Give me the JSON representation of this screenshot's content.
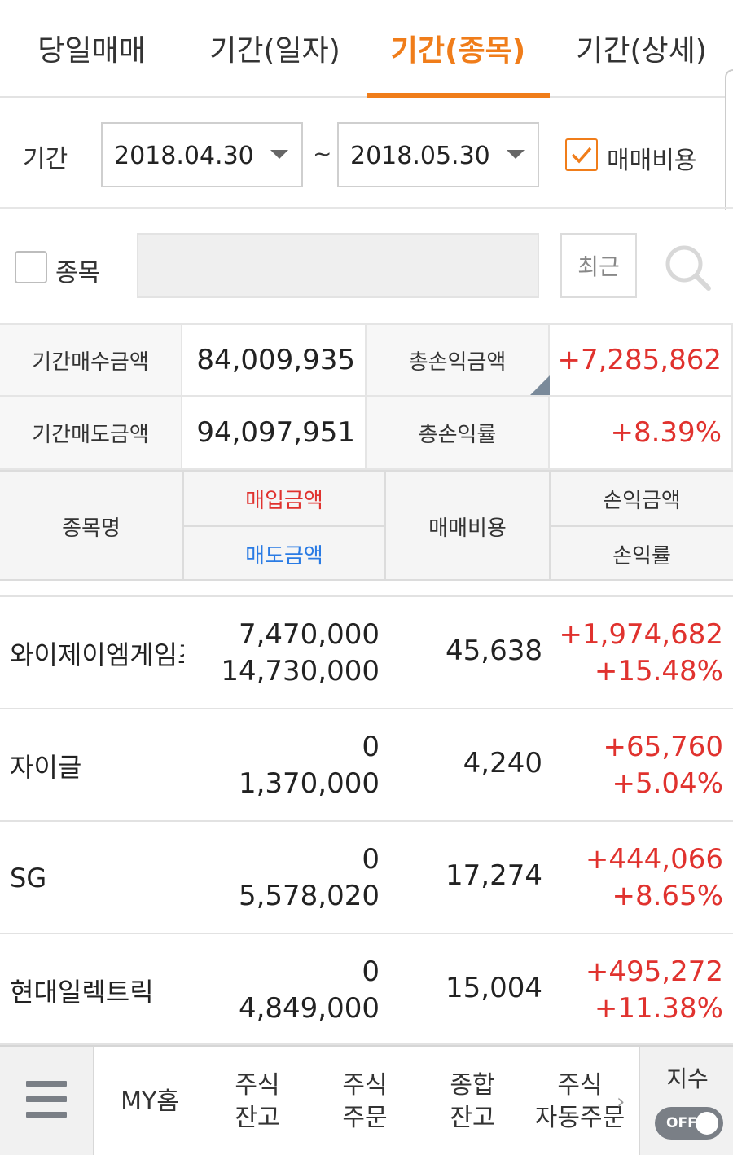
{
  "tabs": [
    {
      "label": "당일매매",
      "active": false
    },
    {
      "label": "기간(일자)",
      "active": false
    },
    {
      "label": "기간(종목)",
      "active": true
    },
    {
      "label": "기간(상세)",
      "active": false
    }
  ],
  "period": {
    "label": "기간",
    "start_date": "2018.04.30",
    "separator": "~",
    "end_date": "2018.05.30",
    "fee_checkbox_label": "매매비용",
    "fee_checked": true
  },
  "stock_filter": {
    "label": "종목",
    "checked": false,
    "input_value": "",
    "recent_button": "최근"
  },
  "summary": {
    "buy_label": "기간매수금액",
    "buy_value": "84,009,935",
    "sell_label": "기간매도금액",
    "sell_value": "94,097,951",
    "total_pl_label": "총손익금액",
    "total_pl_value": "+7,285,862",
    "total_rate_label": "총손익률",
    "total_rate_value": "+8.39%"
  },
  "table": {
    "headers": {
      "name": "종목명",
      "buy_amount": "매입금액",
      "sell_amount": "매도금액",
      "fee": "매매비용",
      "pl_amount": "손익금액",
      "pl_rate": "손익률"
    },
    "rows": [
      {
        "name": "와이제이엠게임즈",
        "buy": "7,470,000",
        "sell": "14,730,000",
        "fee": "45,638",
        "pl": "+1,974,682",
        "rate": "+15.48%"
      },
      {
        "name": "자이글",
        "buy": "0",
        "sell": "1,370,000",
        "fee": "4,240",
        "pl": "+65,760",
        "rate": "+5.04%"
      },
      {
        "name": "SG",
        "buy": "0",
        "sell": "5,578,020",
        "fee": "17,274",
        "pl": "+444,066",
        "rate": "+8.65%"
      },
      {
        "name": "현대일렉트릭",
        "buy": "0",
        "sell": "4,849,000",
        "fee": "15,004",
        "pl": "+495,272",
        "rate": "+11.38%"
      }
    ]
  },
  "bottom_nav": {
    "items": [
      {
        "label": "MY홈"
      },
      {
        "label": "주식\n잔고"
      },
      {
        "label": "주식\n주문"
      },
      {
        "label": "종합\n잔고"
      },
      {
        "label": "주식\n자동주문"
      }
    ],
    "index_label": "지수",
    "index_toggle": "OFF"
  },
  "colors": {
    "accent": "#f07d1a",
    "positive": "#e0322e",
    "sell_blue": "#2a7be4"
  }
}
